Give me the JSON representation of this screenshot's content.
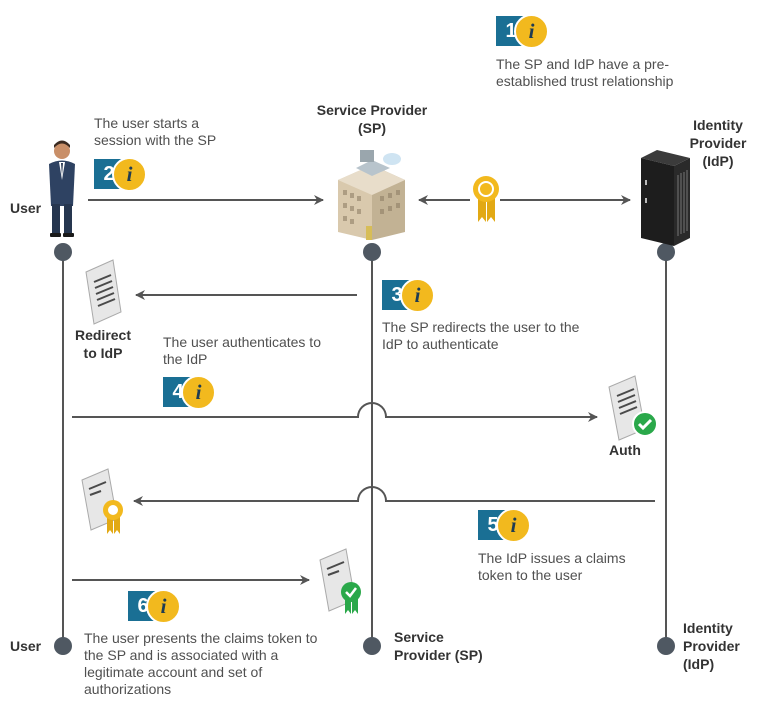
{
  "actors": {
    "user_left": "User",
    "user_bottom": "User",
    "sp_top": "Service Provider (SP)",
    "sp_bottom": "Service Provider (SP)",
    "idp_top": "Identity Provider (IdP)",
    "idp_bottom": "Identity Provider (IdP)"
  },
  "labels": {
    "redirect": "Redirect to IdP",
    "auth": "Auth"
  },
  "steps": [
    {
      "num": "1",
      "text": "The SP and IdP have a pre-established trust relationship"
    },
    {
      "num": "2",
      "text": "The user starts a session with the SP"
    },
    {
      "num": "3",
      "text": "The SP redirects the user to the IdP to authenticate"
    },
    {
      "num": "4",
      "text": "The user authenticates to the IdP"
    },
    {
      "num": "5",
      "text": "The IdP issues a claims token to the user"
    },
    {
      "num": "6",
      "text": "The user presents the claims token to the SP and is associated with a legitimate account and set of authorizations"
    }
  ],
  "icons": {
    "info": "i",
    "user": "user-person-icon",
    "sp": "building-icon",
    "idp": "server-rack-icon",
    "trust": "certificate-ribbon-icon"
  },
  "colors": {
    "badge_blue": "#1a6f94",
    "badge_yellow": "#f2b91e",
    "line": "#555555",
    "node": "#4f5862",
    "check": "#2aa84a"
  }
}
